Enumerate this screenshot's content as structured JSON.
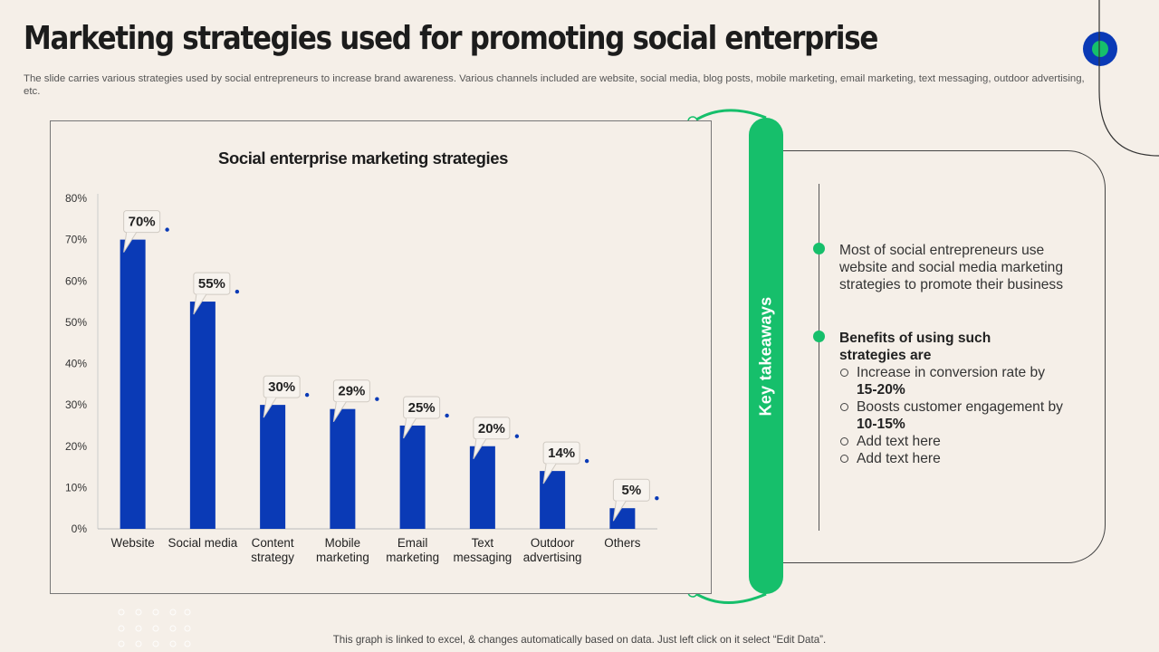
{
  "slide": {
    "title": "Marketing strategies used for promoting social enterprise",
    "subtitle": "The slide carries various strategies used by social entrepreneurs to increase brand awareness. Various channels included are website, social media, blog posts, mobile marketing, email marketing, text messaging, outdoor advertising, etc.",
    "footer": "This graph is linked to excel, & changes automatically based on data. Just left click on it select “Edit Data”."
  },
  "colors": {
    "bar": "#0a3ab6",
    "accent_green": "#16bf6b",
    "background": "#f5efe8"
  },
  "chart_data": {
    "type": "bar",
    "title": "Social enterprise marketing strategies",
    "categories": [
      "Website",
      "Social media",
      "Content strategy",
      "Mobile marketing",
      "Email marketing",
      "Text messaging",
      "Outdoor advertising",
      "Others"
    ],
    "values": [
      70,
      55,
      30,
      29,
      25,
      20,
      14,
      5
    ],
    "data_labels": [
      "70%",
      "55%",
      "30%",
      "29%",
      "25%",
      "20%",
      "14%",
      "5%"
    ],
    "ylim": [
      0,
      80
    ],
    "yticks": [
      "0%",
      "10%",
      "20%",
      "30%",
      "40%",
      "50%",
      "60%",
      "70%",
      "80%"
    ],
    "xlabel": "",
    "ylabel": "",
    "grid": false
  },
  "takeaways": {
    "header": "Key takeaways",
    "point1": "Most of social entrepreneurs  use website and social media marketing strategies to promote their business",
    "point2_title": "Benefits of using such strategies are",
    "sub_items": [
      {
        "text": "Increase  in conversion rate by ",
        "bold": "15-20%"
      },
      {
        "text": "Boosts customer engagement by ",
        "bold": "10-15%"
      },
      {
        "text": "Add text here",
        "bold": ""
      },
      {
        "text": "Add text here",
        "bold": ""
      }
    ]
  }
}
